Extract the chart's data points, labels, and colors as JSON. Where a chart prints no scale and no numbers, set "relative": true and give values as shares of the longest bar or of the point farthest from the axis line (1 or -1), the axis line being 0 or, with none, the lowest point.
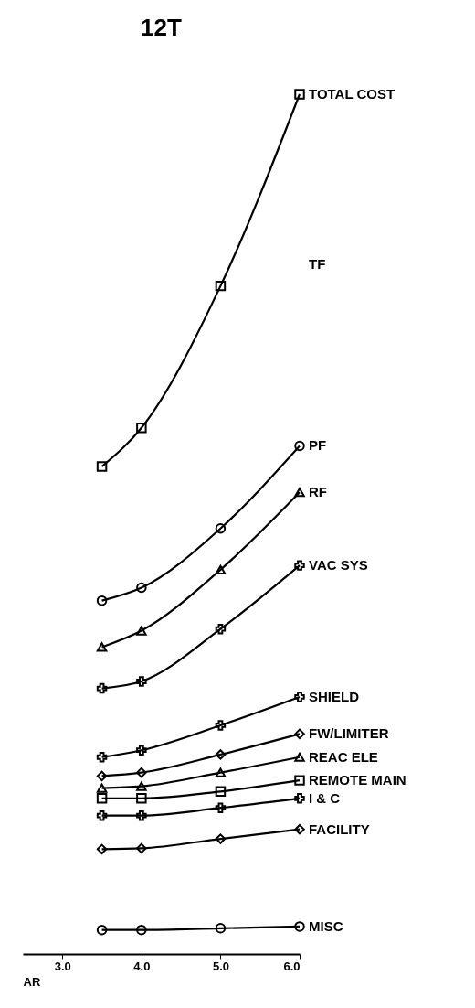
{
  "chart_data": {
    "type": "line",
    "title": "12T",
    "xlabel": "AR",
    "relative": true,
    "x": [
      3.5,
      4,
      5,
      6
    ],
    "xlim": [
      2.5,
      6
    ],
    "xticks": [
      {
        "value": 3,
        "label": "3.0"
      },
      {
        "value": 4,
        "label": "4.0"
      },
      {
        "value": 5,
        "label": "5.0"
      },
      {
        "value": 6,
        "label": "6.0"
      }
    ],
    "grid": false,
    "annotations": [
      "TF"
    ],
    "series": [
      {
        "name": "TOTAL COST",
        "color": "#000000",
        "marker": "square",
        "values": [
          0.567,
          0.612,
          0.777,
          1
        ]
      },
      {
        "name": "PF",
        "color": "#000000",
        "marker": "circle",
        "values": [
          0.411,
          0.426,
          0.495,
          0.591
        ]
      },
      {
        "name": "RF",
        "color": "#000000",
        "marker": "triangle",
        "values": [
          0.357,
          0.376,
          0.447,
          0.537
        ]
      },
      {
        "name": "VAC SYS",
        "color": "#000000",
        "marker": "cross",
        "values": [
          0.309,
          0.317,
          0.378,
          0.452
        ]
      },
      {
        "name": "SHIELD",
        "color": "#000000",
        "marker": "cross",
        "values": [
          0.229,
          0.237,
          0.266,
          0.299
        ]
      },
      {
        "name": "FW/LIMITER",
        "color": "#000000",
        "marker": "diamond",
        "values": [
          0.207,
          0.211,
          0.232,
          0.256
        ]
      },
      {
        "name": "REAC ELE",
        "color": "#000000",
        "marker": "triangle",
        "values": [
          0.193,
          0.195,
          0.211,
          0.229
        ]
      },
      {
        "name": "REMOTE MAIN",
        "color": "#000000",
        "marker": "square",
        "values": [
          0.181,
          0.181,
          0.189,
          0.202
        ]
      },
      {
        "name": "I & C",
        "color": "#000000",
        "marker": "cross",
        "values": [
          0.161,
          0.161,
          0.17,
          0.181
        ]
      },
      {
        "name": "FACILITY",
        "color": "#000000",
        "marker": "diamond",
        "values": [
          0.122,
          0.123,
          0.134,
          0.145
        ]
      },
      {
        "name": "MISC",
        "color": "#000000",
        "marker": "circle",
        "values": [
          0.028,
          0.028,
          0.03,
          0.032
        ]
      }
    ]
  }
}
